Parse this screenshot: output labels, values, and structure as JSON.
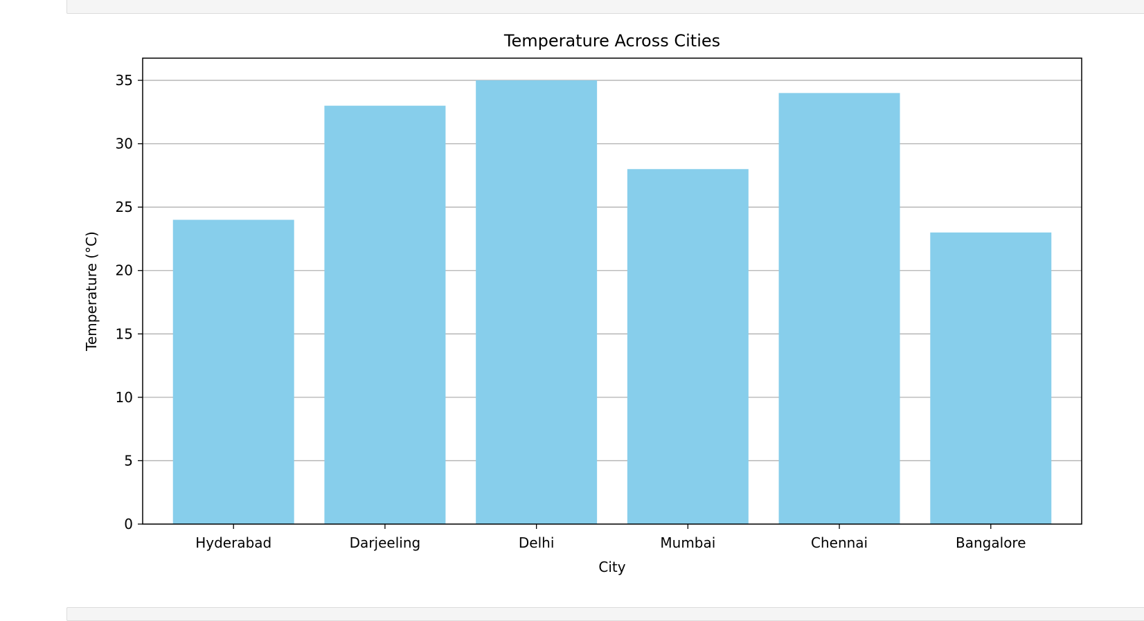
{
  "chart_data": {
    "type": "bar",
    "title": "Temperature Across Cities",
    "xlabel": "City",
    "ylabel": "Temperature (°C)",
    "categories": [
      "Hyderabad",
      "Darjeeling",
      "Delhi",
      "Mumbai",
      "Chennai",
      "Bangalore"
    ],
    "values": [
      24,
      33,
      35,
      28,
      34,
      23
    ],
    "ylim": [
      0,
      36.75
    ],
    "yticks": [
      0,
      5,
      10,
      15,
      20,
      25,
      30,
      35
    ],
    "grid": "y",
    "bar_color": "#87ceeb",
    "grid_color": "#b0b0b0"
  }
}
